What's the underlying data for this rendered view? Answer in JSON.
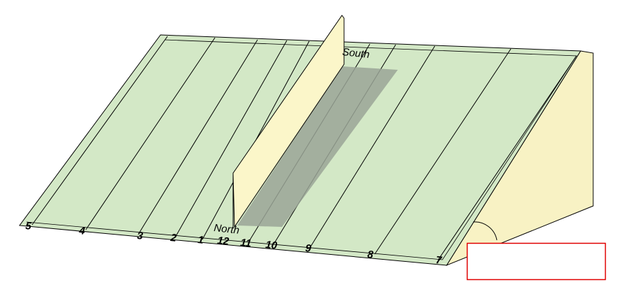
{
  "diagram": {
    "directions": {
      "north": "North",
      "south": "South"
    },
    "hour_labels": [
      "5",
      "4",
      "3",
      "2",
      "1",
      "12",
      "11",
      "10",
      "9",
      "8",
      "7"
    ],
    "annotation_box": {
      "text": ""
    },
    "colors": {
      "dial_plate": "#d3e8c6",
      "gnomon": "#fbf6c9",
      "side_wedge": "#f8f2c4",
      "shadow": "#9aa596",
      "annotation_border": "#e00000",
      "outline": "#000000"
    }
  }
}
